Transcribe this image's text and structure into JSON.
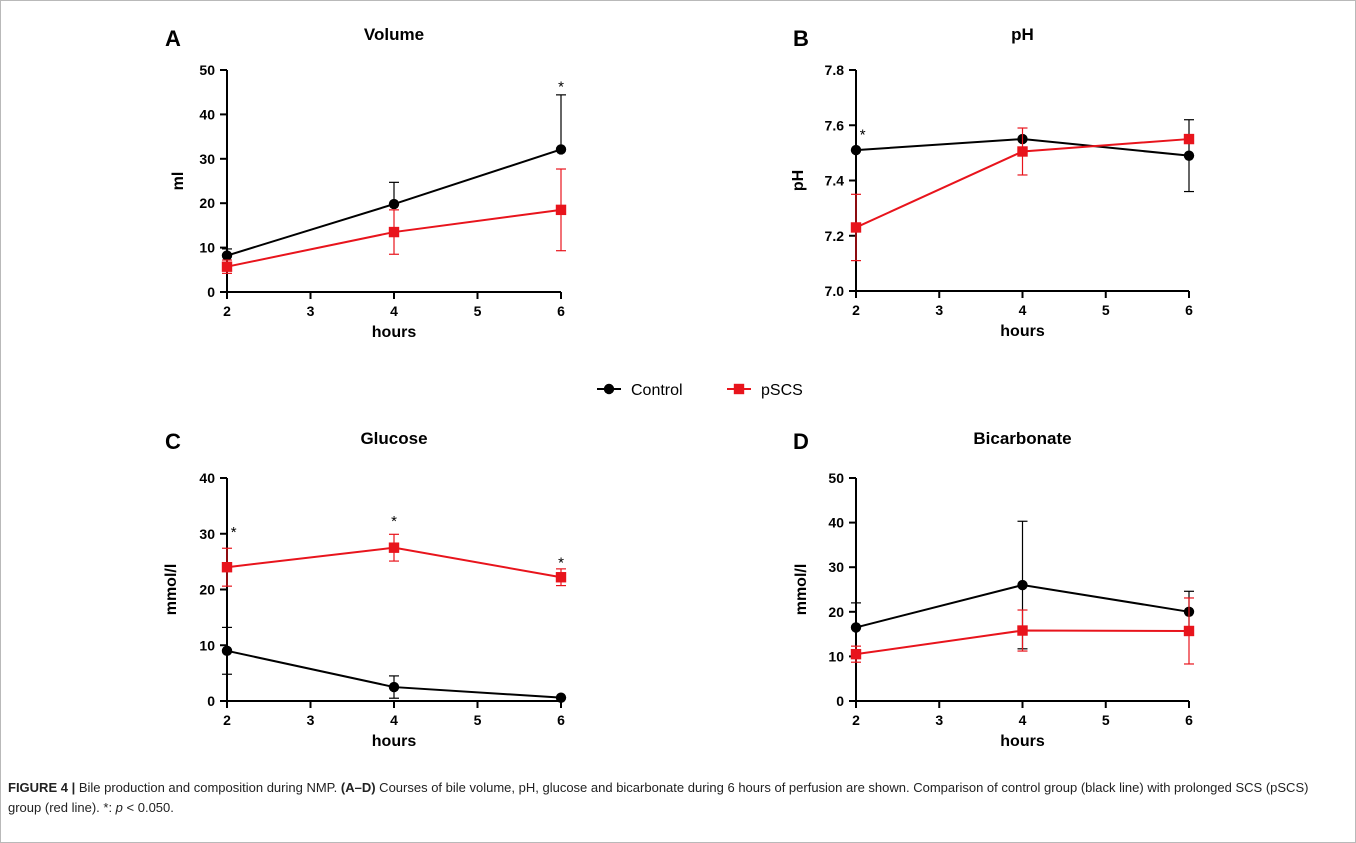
{
  "colors": {
    "control": "#000000",
    "pscs": "#e8141c",
    "frame": "#b9b9b9",
    "axis": "#000000"
  },
  "legend": {
    "placement": "center",
    "items": [
      {
        "label": "Control",
        "color": "#000000",
        "marker": "circle"
      },
      {
        "label": "pSCS",
        "color": "#e8141c",
        "marker": "square"
      }
    ]
  },
  "chart_data": [
    {
      "panel": "A",
      "type": "line",
      "title": "Volume",
      "xlabel": "hours",
      "ylabel": "ml",
      "x": [
        2,
        4,
        6
      ],
      "xlim": [
        2,
        6
      ],
      "xticks": [
        2,
        3,
        4,
        5,
        6
      ],
      "ylim": [
        0,
        50
      ],
      "yticks": [
        0,
        10,
        20,
        30,
        40,
        50
      ],
      "grid": false,
      "series": [
        {
          "name": "Control",
          "marker": "circle",
          "values": [
            8.2,
            19.8,
            32.1
          ],
          "err": [
            1.5,
            4.9,
            12.3
          ],
          "err_dir": "up"
        },
        {
          "name": "pSCS",
          "marker": "square",
          "values": [
            5.7,
            13.5,
            18.5
          ],
          "err": [
            1.5,
            5.0,
            9.2
          ],
          "err_dir": "both"
        }
      ],
      "annotations": [
        {
          "x": 6,
          "y": 46.5,
          "text": "*"
        }
      ]
    },
    {
      "panel": "B",
      "type": "line",
      "title": "pH",
      "xlabel": "hours",
      "ylabel": "pH",
      "x": [
        2,
        4,
        6
      ],
      "xlim": [
        2,
        6
      ],
      "xticks": [
        2,
        3,
        4,
        5,
        6
      ],
      "ylim": [
        7.0,
        7.8
      ],
      "yticks": [
        7.0,
        7.2,
        7.4,
        7.6,
        7.8
      ],
      "ytick_labels": [
        "7.0",
        "7.2",
        "7.4",
        "7.6",
        "7.8"
      ],
      "grid": false,
      "series": [
        {
          "name": "Control",
          "marker": "circle",
          "values": [
            7.51,
            7.55,
            7.49
          ],
          "err": [
            0.0,
            0.0,
            0.13
          ],
          "err_dir": "both"
        },
        {
          "name": "pSCS",
          "marker": "square",
          "values": [
            7.23,
            7.505,
            7.55
          ],
          "err": [
            0.12,
            0.085,
            0.0
          ],
          "err_dir": "both"
        }
      ],
      "annotations": [
        {
          "x": 2.08,
          "y": 7.57,
          "text": "*"
        }
      ]
    },
    {
      "panel": "C",
      "type": "line",
      "title": "Glucose",
      "xlabel": "hours",
      "ylabel": "mmol/l",
      "x": [
        2,
        4,
        6
      ],
      "xlim": [
        2,
        6
      ],
      "xticks": [
        2,
        3,
        4,
        5,
        6
      ],
      "ylim": [
        0,
        40
      ],
      "yticks": [
        0,
        10,
        20,
        30,
        40
      ],
      "grid": false,
      "series": [
        {
          "name": "Control",
          "marker": "circle",
          "values": [
            9.0,
            2.5,
            0.6
          ],
          "err": [
            4.2,
            2.0,
            0.0
          ],
          "err_dir": "both"
        },
        {
          "name": "pSCS",
          "marker": "square",
          "values": [
            24.0,
            27.5,
            22.2
          ],
          "err": [
            3.4,
            2.4,
            1.5
          ],
          "err_dir": "both"
        }
      ],
      "annotations": [
        {
          "x": 2.08,
          "y": 30.5,
          "text": "*"
        },
        {
          "x": 4,
          "y": 32.5,
          "text": "*"
        },
        {
          "x": 6,
          "y": 25.0,
          "text": "*"
        }
      ]
    },
    {
      "panel": "D",
      "type": "line",
      "title": "Bicarbonate",
      "xlabel": "hours",
      "ylabel": "mmol/l",
      "x": [
        2,
        4,
        6
      ],
      "xlim": [
        2,
        6
      ],
      "xticks": [
        2,
        3,
        4,
        5,
        6
      ],
      "ylim": [
        0,
        50
      ],
      "yticks": [
        0,
        10,
        20,
        30,
        40,
        50
      ],
      "grid": false,
      "series": [
        {
          "name": "Control",
          "marker": "circle",
          "values": [
            16.5,
            26.0,
            20.0
          ],
          "err": [
            5.5,
            14.3,
            4.6
          ],
          "err_dir": "both"
        },
        {
          "name": "pSCS",
          "marker": "square",
          "values": [
            10.5,
            15.8,
            15.7
          ],
          "err": [
            1.8,
            4.6,
            7.4
          ],
          "err_dir": "both"
        }
      ],
      "annotations": []
    }
  ],
  "caption": {
    "label": "FIGURE 4 |",
    "text1": " Bile production and composition during NMP. ",
    "panels_ref": "(A–D)",
    "text2": " Courses of bile volume, pH, glucose and bicarbonate during 6 hours of perfusion are shown. Comparison of control group (black line) with prolonged SCS (pSCS) group (red line). *: ",
    "symbol": "p",
    "text3": " < 0.050."
  }
}
